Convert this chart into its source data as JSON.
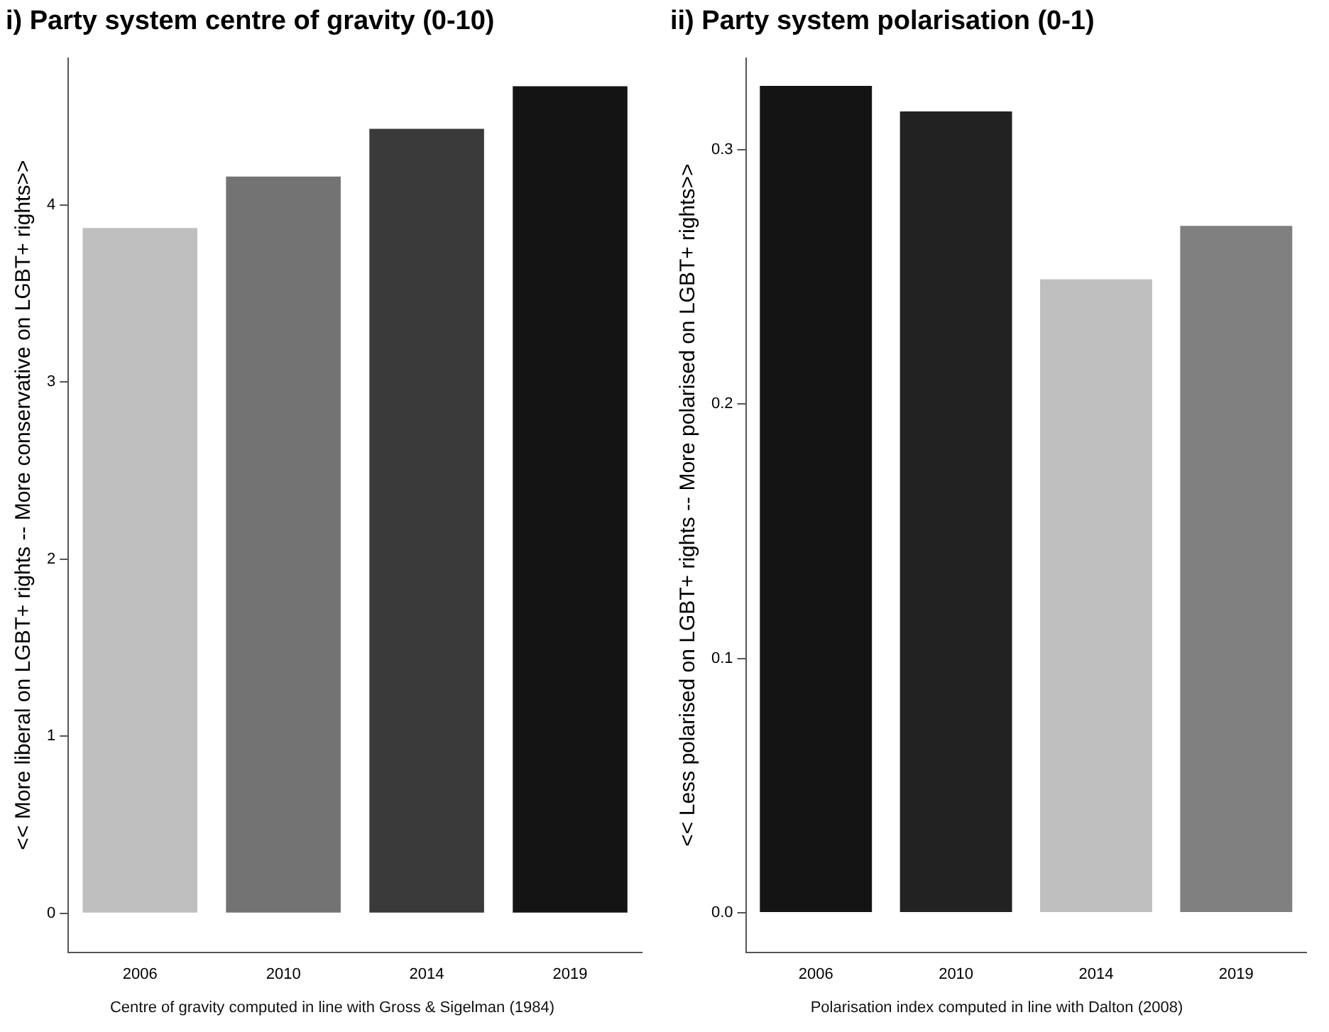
{
  "chart_data": [
    {
      "type": "bar",
      "title": "i) Party system centre of gravity (0-10)",
      "ylabel": "<< More liberal on LGBT+ rights -- More conservative on LGBT+ rights>>",
      "categories": [
        "2006",
        "2010",
        "2014",
        "2019"
      ],
      "values": [
        3.87,
        4.16,
        4.43,
        4.67
      ],
      "colors": [
        "#bfbfbf",
        "#737373",
        "#3a3a3a",
        "#141414"
      ],
      "ylim": [
        -0.22,
        4.83
      ],
      "yticks": [
        0,
        1,
        2,
        3,
        4
      ],
      "grid": false,
      "legend": false,
      "annotations": [
        "Centre of gravity computed in line with Gross & Sigelman (1984)"
      ]
    },
    {
      "type": "bar",
      "title": "ii) Party system polarisation (0-1)",
      "ylabel": "<< Less polarised on LGBT+ rights -- More polarised on LGBT+ rights>>",
      "categories": [
        "2006",
        "2010",
        "2014",
        "2019"
      ],
      "values": [
        0.325,
        0.315,
        0.249,
        0.27
      ],
      "colors": [
        "#141414",
        "#222222",
        "#bfbfbf",
        "#808080"
      ],
      "ylim": [
        -0.0155,
        0.336
      ],
      "yticks": [
        {
          "value": 0,
          "label": "0.0"
        },
        0.1,
        0.2,
        0.3
      ],
      "grid": false,
      "legend": false,
      "annotations": [
        "Polarisation index computed in line with Dalton (2008)"
      ]
    }
  ]
}
